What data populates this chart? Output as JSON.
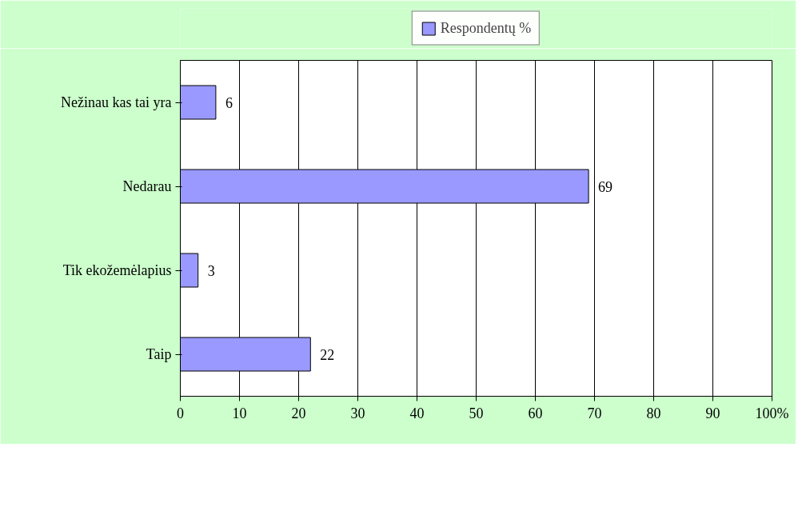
{
  "chart_data": {
    "type": "bar",
    "orientation": "horizontal",
    "categories": [
      "Nežinau kas tai yra",
      "Nedarau",
      "Tik ekožemėlapius",
      "Taip"
    ],
    "series": [
      {
        "name": "Respondentų %",
        "color": "#9999ff",
        "values": [
          6,
          69,
          3,
          22
        ]
      }
    ],
    "xlim": [
      0,
      100
    ],
    "xticks": [
      0,
      10,
      20,
      30,
      40,
      50,
      60,
      70,
      80,
      90,
      {
        "value": 100,
        "label": "100%"
      }
    ],
    "grid": "x",
    "legend": "top",
    "data_labels": true
  }
}
